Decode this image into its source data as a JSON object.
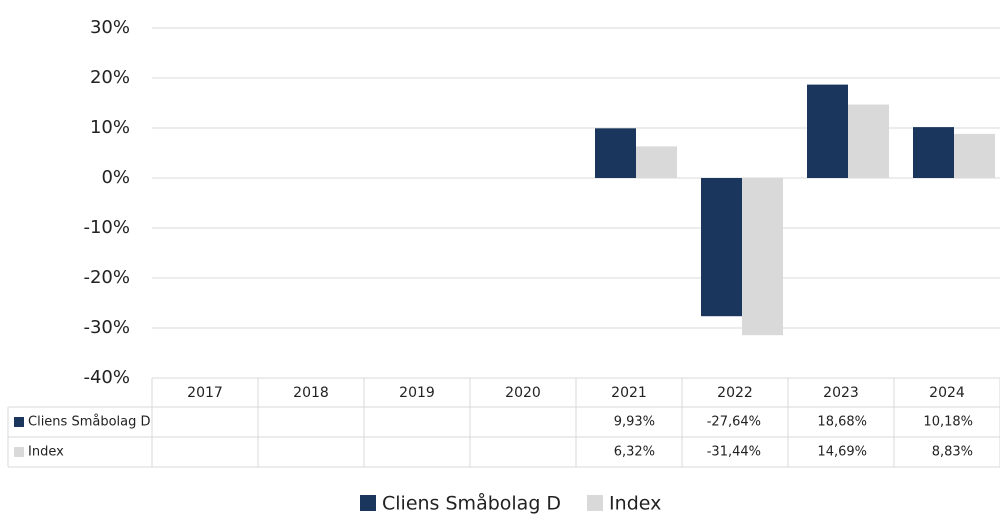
{
  "chart_data": {
    "type": "bar",
    "categories": [
      "2017",
      "2018",
      "2019",
      "2020",
      "2021",
      "2022",
      "2023",
      "2024"
    ],
    "series": [
      {
        "name": "Cliens Småbolag D",
        "color": "#1b365d",
        "values": [
          null,
          null,
          null,
          null,
          9.93,
          -27.64,
          18.68,
          10.18
        ],
        "value_labels": [
          null,
          null,
          null,
          null,
          "9,93%",
          "-27,64%",
          "18,68%",
          "10,18%"
        ]
      },
      {
        "name": "Index",
        "color": "#d9d9d9",
        "values": [
          null,
          null,
          null,
          null,
          6.32,
          -31.44,
          14.69,
          8.83
        ],
        "value_labels": [
          null,
          null,
          null,
          null,
          "6,32%",
          "-31,44%",
          "14,69%",
          "8,83%"
        ]
      }
    ],
    "ylim": [
      -40,
      30
    ],
    "yticks": [
      {
        "value": -40,
        "label": "-40%"
      },
      {
        "value": -30,
        "label": "-30%"
      },
      {
        "value": -20,
        "label": "-20%"
      },
      {
        "value": -10,
        "label": "-10%"
      },
      {
        "value": 0,
        "label": "0%"
      },
      {
        "value": 10,
        "label": "10%"
      },
      {
        "value": 20,
        "label": "20%"
      },
      {
        "value": 30,
        "label": "30%"
      }
    ],
    "grid": true,
    "legend": "bottom"
  }
}
